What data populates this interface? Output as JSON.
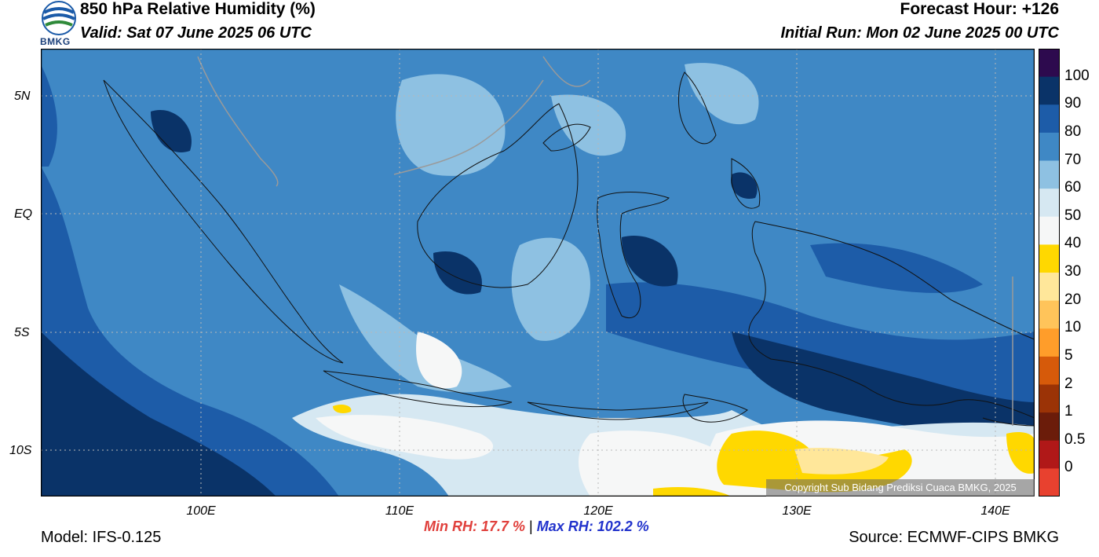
{
  "header": {
    "title": "850 hPa Relative Humidity (%)",
    "valid": "Valid: Sat 07 June 2025 06 UTC",
    "forecast_hour": "Forecast Hour: +126",
    "initial_run": "Initial Run: Mon 02 June 2025 00 UTC"
  },
  "logo": {
    "text": "BMKG"
  },
  "map": {
    "lat_labels": [
      "5N",
      "EQ",
      "5S",
      "10S"
    ],
    "lon_labels": [
      "100E",
      "110E",
      "120E",
      "130E",
      "140E"
    ],
    "copyright": "Copyright Sub Bidang Prediksi Cuaca BMKG, 2025"
  },
  "colorbar": {
    "labels": [
      "100",
      "90",
      "80",
      "70",
      "60",
      "50",
      "40",
      "30",
      "20",
      "10",
      "5",
      "2",
      "1",
      "0.5",
      "0"
    ],
    "colors": [
      "#2d0a4e",
      "#0a3368",
      "#1d5ca8",
      "#3f88c5",
      "#8ec1e2",
      "#d6e8f2",
      "#f6f7f7",
      "#ffd800",
      "#ffe79a",
      "#ffc45a",
      "#ff9d2a",
      "#d65a0a",
      "#9b3306",
      "#6b1c0a",
      "#b01818",
      "#e8412f"
    ]
  },
  "footer": {
    "model": "Model: IFS-0.125",
    "source": "Source: ECMWF-CIPS BMKG",
    "min_rh": "Min RH:  17.7 %",
    "separator": "|",
    "max_rh": "Max RH: 102.2 %"
  }
}
